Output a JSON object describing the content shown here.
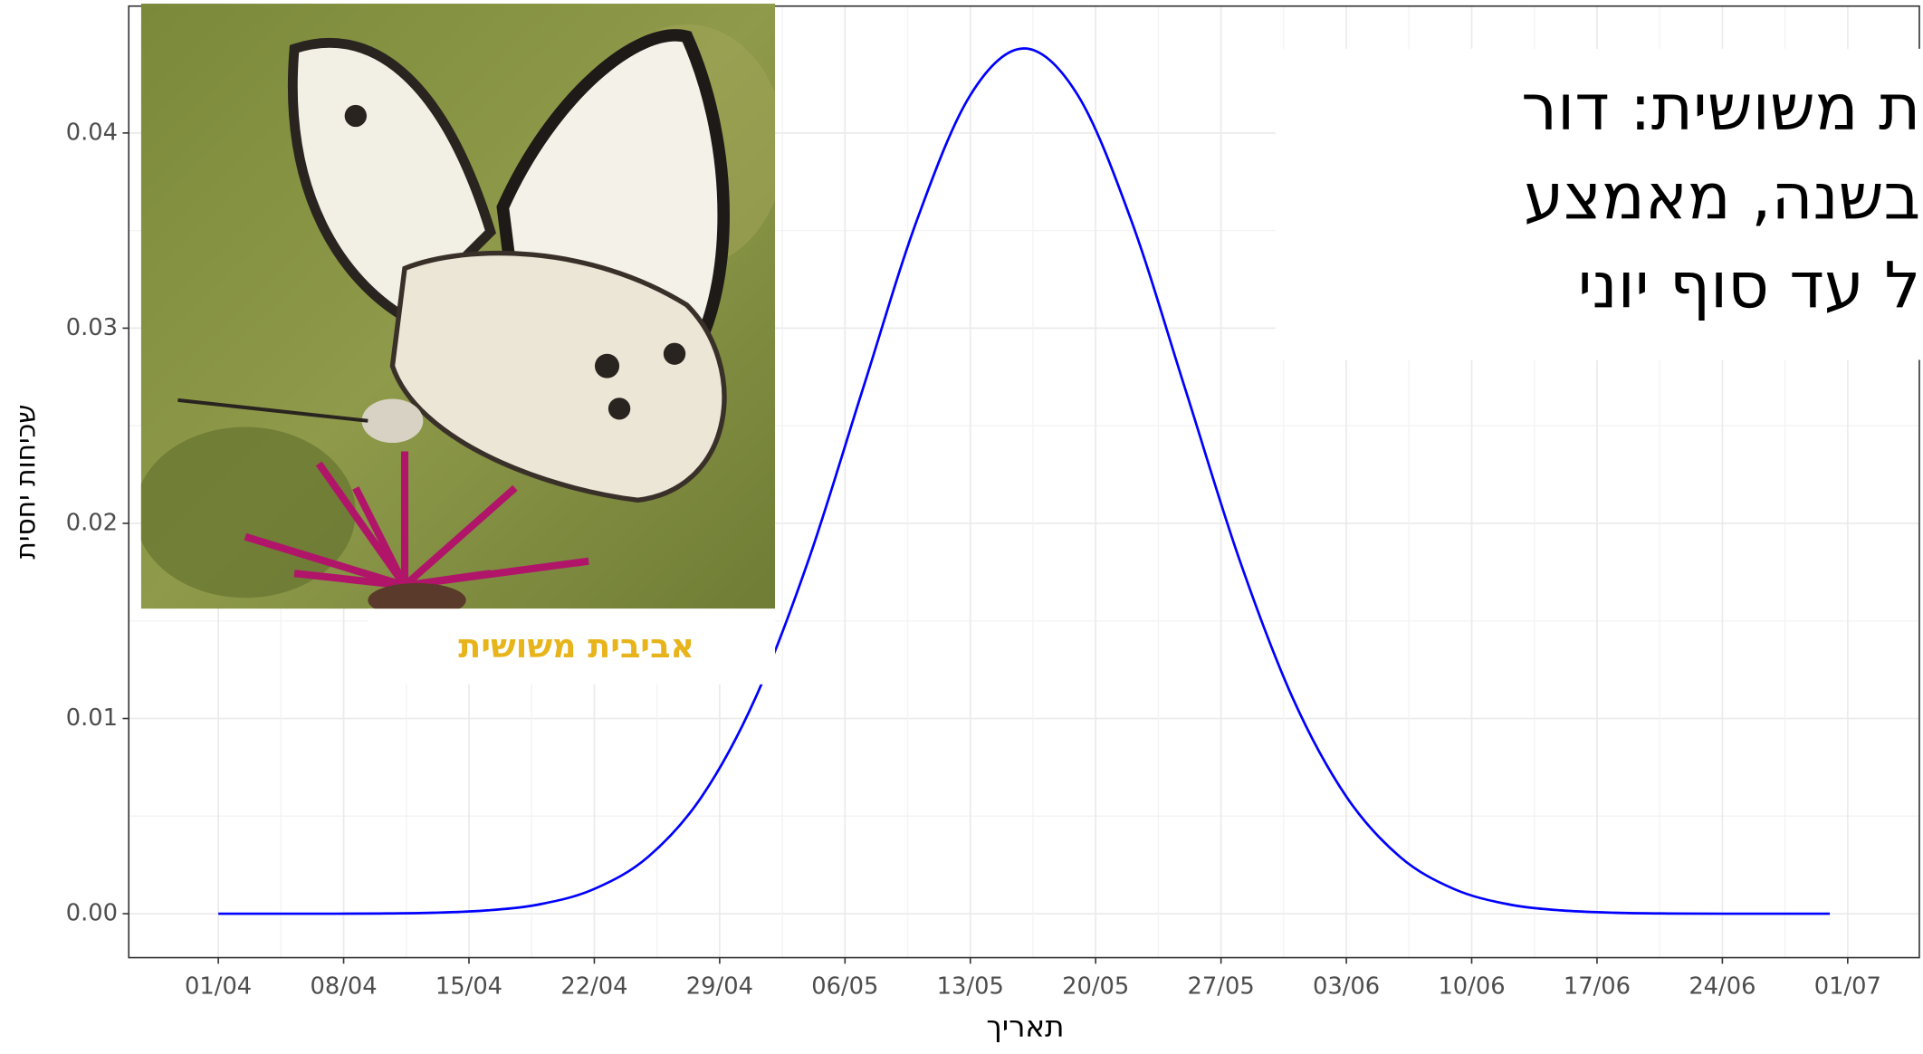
{
  "chart_data": {
    "type": "line",
    "title_lines": [
      "ת משושית: דור",
      "בשנה, מאמצע",
      "ל עד סוף יוני"
    ],
    "image_caption": "אביבית משושית",
    "x_label": "תאריך",
    "y_label": "שכיחות יחסית",
    "color": "#0000ff",
    "x": [
      "01/04",
      "04/04",
      "07/04",
      "10/04",
      "13/04",
      "16/04",
      "19/04",
      "22/04",
      "25/04",
      "28/04",
      "01/05",
      "04/05",
      "07/05",
      "10/05",
      "13/05",
      "16/05",
      "19/05",
      "22/05",
      "25/05",
      "28/05",
      "31/05",
      "03/06",
      "06/06",
      "09/06",
      "12/06",
      "15/06",
      "18/06",
      "21/06",
      "24/06",
      "27/06",
      "30/06"
    ],
    "values": [
      0,
      0,
      0,
      1e-05,
      5e-05,
      0.00017,
      0.00049,
      0.00127,
      0.00291,
      0.006,
      0.01106,
      0.01822,
      0.02689,
      0.03549,
      0.04194,
      0.04433,
      0.04194,
      0.03549,
      0.02689,
      0.01822,
      0.01106,
      0.006,
      0.00291,
      0.00127,
      0.00049,
      0.00017,
      5e-05,
      1e-05,
      0,
      0,
      0
    ],
    "xlim": [
      "27/03",
      "05/07"
    ],
    "xticks": [
      "01/04",
      "08/04",
      "15/04",
      "22/04",
      "29/04",
      "06/05",
      "13/05",
      "20/05",
      "27/05",
      "03/06",
      "10/06",
      "17/06",
      "24/06",
      "01/07"
    ],
    "ylim": [
      -0.00225,
      0.0465
    ],
    "yticks": [
      {
        "value": 0,
        "label": "0.00"
      },
      0.01,
      0.02,
      0.03,
      0.04
    ],
    "grid": true,
    "minor_grid": true
  }
}
